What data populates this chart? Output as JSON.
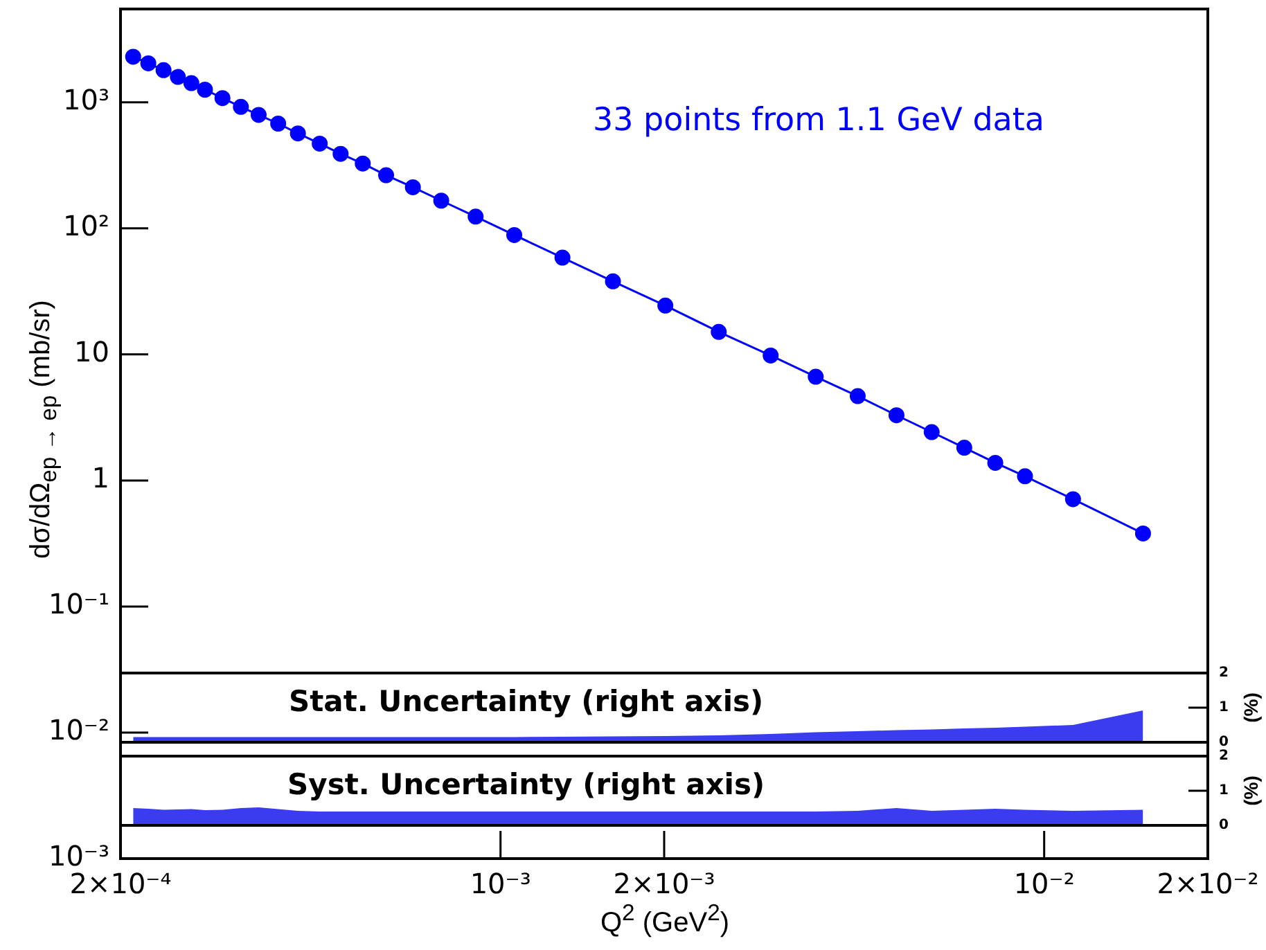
{
  "chart_data": [
    {
      "type": "line",
      "color": "#0000ff",
      "marker": "circle",
      "log": "xy",
      "xlabel": "Q$^{2}$ (GeV$^{2}$)",
      "ylabel": "dσ/dΩ$_{ep → ep}$ (mb/sr)",
      "annotations": [
        "33 points from 1.1 GeV data"
      ],
      "x": [
        0.000211,
        0.000225,
        0.00024,
        0.000255,
        0.00027,
        0.000286,
        0.000308,
        0.000333,
        0.000359,
        0.00039,
        0.000424,
        0.000465,
        0.000508,
        0.000558,
        0.000616,
        0.00069,
        0.000778,
        0.0009,
        0.00106,
        0.0013,
        0.00161,
        0.00201,
        0.00252,
        0.00314,
        0.0038,
        0.00454,
        0.00535,
        0.00621,
        0.00713,
        0.00813,
        0.00922,
        0.0113,
        0.0152
      ],
      "values": [
        2300,
        2040,
        1800,
        1590,
        1420,
        1260,
        1080,
        920,
        795,
        678,
        567,
        470,
        390,
        327,
        264,
        212,
        166,
        124,
        88.5,
        58.6,
        38,
        24.4,
        15.1,
        9.8,
        6.65,
        4.67,
        3.29,
        2.42,
        1.82,
        1.38,
        1.08,
        0.71,
        0.38
      ],
      "xlim": [
        0.0002,
        0.02
      ],
      "xticks": [
        {
          "value": 0.0002,
          "label": "2×10⁻⁴"
        },
        {
          "value": 0.001,
          "label": "10⁻³"
        },
        {
          "value": 0.002,
          "label": "2×10⁻³"
        },
        {
          "value": 0.01,
          "label": "10⁻²"
        },
        {
          "value": 0.02,
          "label": "2×10⁻²"
        }
      ],
      "ylim": [
        0.001,
        5500
      ],
      "yticks": [
        {
          "value": 0.001,
          "label": "10⁻³"
        },
        {
          "value": 0.01,
          "label": "10⁻²"
        },
        {
          "value": 0.1,
          "label": "10⁻¹"
        },
        1,
        10,
        {
          "value": 100,
          "label": "10²"
        },
        {
          "value": 1000,
          "label": "10³"
        }
      ]
    },
    {
      "type": "area",
      "color": "#3b3bf0",
      "log": "x",
      "title": "Stat. Uncertainty (right axis)",
      "ylabel": "(%)",
      "tick_labels": "y",
      "x": [
        0.000211,
        0.000225,
        0.00024,
        0.000255,
        0.00027,
        0.000286,
        0.000308,
        0.000333,
        0.000359,
        0.00039,
        0.000424,
        0.000465,
        0.000508,
        0.000558,
        0.000616,
        0.00069,
        0.000778,
        0.0009,
        0.00106,
        0.0013,
        0.00161,
        0.00201,
        0.00252,
        0.00314,
        0.0038,
        0.00454,
        0.00535,
        0.00621,
        0.00713,
        0.00813,
        0.00922,
        0.0113,
        0.0152
      ],
      "values": [
        0.15,
        0.15,
        0.15,
        0.15,
        0.15,
        0.15,
        0.15,
        0.15,
        0.15,
        0.15,
        0.15,
        0.15,
        0.15,
        0.15,
        0.15,
        0.15,
        0.15,
        0.15,
        0.15,
        0.16,
        0.17,
        0.18,
        0.2,
        0.24,
        0.29,
        0.32,
        0.35,
        0.37,
        0.4,
        0.42,
        0.45,
        0.5,
        0.92
      ],
      "xlim": [
        0.0002,
        0.02
      ],
      "ylim": [
        0,
        2
      ],
      "yticks": [
        0,
        1,
        2
      ]
    },
    {
      "type": "area",
      "color": "#3b3bf0",
      "log": "x",
      "title": "Syst. Uncertainty (right axis)",
      "ylabel": "(%)",
      "tick_labels": "y",
      "x": [
        0.000211,
        0.000225,
        0.00024,
        0.000255,
        0.00027,
        0.000286,
        0.000308,
        0.000333,
        0.000359,
        0.00039,
        0.000424,
        0.000465,
        0.000508,
        0.000558,
        0.000616,
        0.00069,
        0.000778,
        0.0009,
        0.00106,
        0.0013,
        0.00161,
        0.00201,
        0.00252,
        0.00314,
        0.0038,
        0.00454,
        0.00535,
        0.00621,
        0.00713,
        0.00813,
        0.00922,
        0.0113,
        0.0152
      ],
      "values": [
        0.5,
        0.48,
        0.45,
        0.46,
        0.47,
        0.44,
        0.45,
        0.5,
        0.52,
        0.47,
        0.42,
        0.4,
        0.4,
        0.4,
        0.4,
        0.4,
        0.4,
        0.4,
        0.4,
        0.4,
        0.4,
        0.4,
        0.4,
        0.4,
        0.4,
        0.42,
        0.5,
        0.42,
        0.45,
        0.48,
        0.45,
        0.42,
        0.45
      ],
      "xlim": [
        0.0002,
        0.02
      ],
      "ylim": [
        0,
        2
      ],
      "yticks": [
        0,
        1,
        2
      ]
    }
  ]
}
